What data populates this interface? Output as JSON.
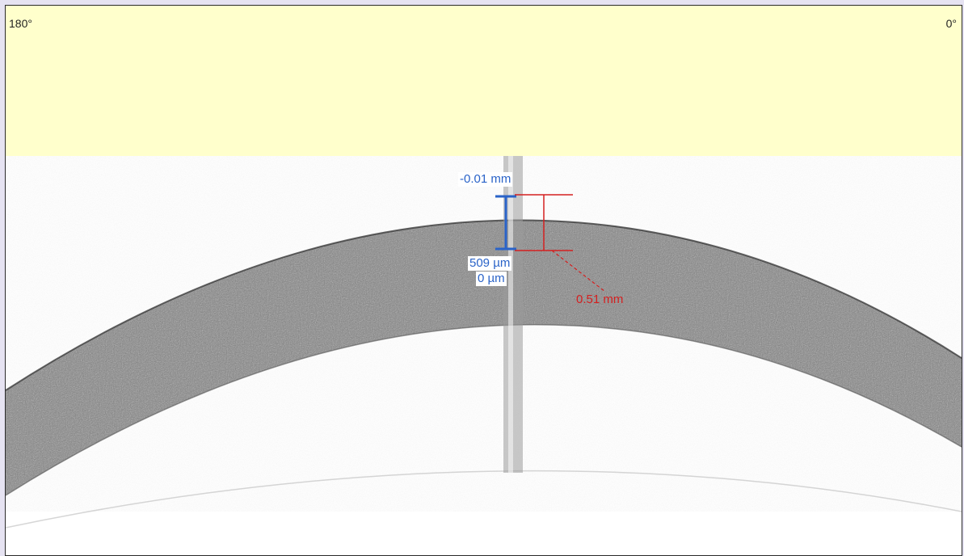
{
  "header": {
    "angle_left": "180°",
    "angle_right": "0°"
  },
  "measurements": {
    "top_offset": "-0.01 mm",
    "thickness_blue": "509 µm",
    "zero_offset": "0 µm",
    "thickness_red": "0.51 mm"
  },
  "colors": {
    "header_band": "#ffffcc",
    "blue_caliper": "#2a63c8",
    "red_caliper": "#d42020",
    "tissue": "#4a4a4a"
  }
}
